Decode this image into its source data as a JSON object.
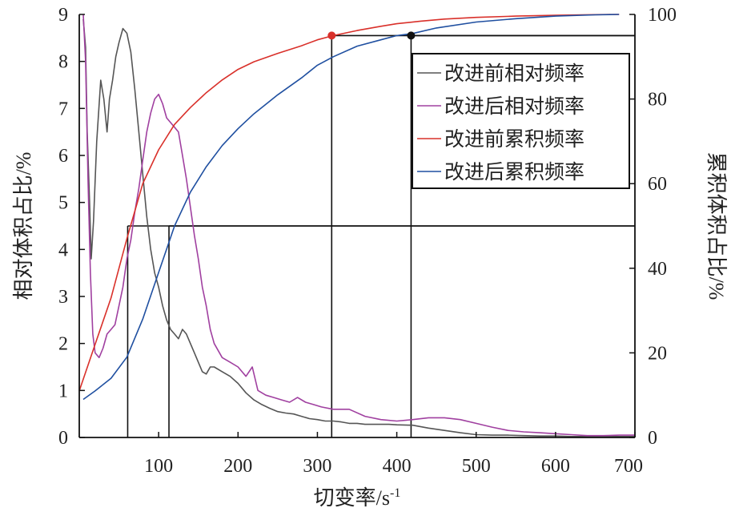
{
  "chart_data": {
    "type": "line",
    "xlabel": "切变率/s",
    "xlabel_sup": "-1",
    "ylabel_left": "相对体积占比/%",
    "ylabel_right": "累积体积占比/%",
    "xlim": [
      0,
      700
    ],
    "ylim_left": [
      0,
      9
    ],
    "ylim_right": [
      0,
      100
    ],
    "x_ticks": [
      100,
      200,
      300,
      400,
      500,
      600,
      700
    ],
    "y_left_ticks": [
      0,
      1,
      2,
      3,
      4,
      5,
      6,
      7,
      8,
      9
    ],
    "y_right_ticks": [
      0,
      20,
      40,
      60,
      80,
      100
    ],
    "legend_position": "top-right",
    "series": [
      {
        "name": "改进前相对频率",
        "axis": "left",
        "color": "#555555",
        "points": [
          [
            5,
            8.9
          ],
          [
            8,
            8.3
          ],
          [
            10,
            6.5
          ],
          [
            13,
            5.0
          ],
          [
            15,
            3.8
          ],
          [
            18,
            4.6
          ],
          [
            22,
            6.3
          ],
          [
            27,
            7.6
          ],
          [
            31,
            7.2
          ],
          [
            35,
            6.5
          ],
          [
            38,
            7.2
          ],
          [
            42,
            7.6
          ],
          [
            46,
            8.1
          ],
          [
            50,
            8.4
          ],
          [
            55,
            8.7
          ],
          [
            60,
            8.6
          ],
          [
            65,
            8.2
          ],
          [
            70,
            7.4
          ],
          [
            75,
            6.5
          ],
          [
            80,
            5.6
          ],
          [
            85,
            4.7
          ],
          [
            90,
            4.0
          ],
          [
            95,
            3.5
          ],
          [
            100,
            3.2
          ],
          [
            105,
            2.8
          ],
          [
            110,
            2.5
          ],
          [
            115,
            2.3
          ],
          [
            120,
            2.2
          ],
          [
            125,
            2.1
          ],
          [
            130,
            2.3
          ],
          [
            135,
            2.2
          ],
          [
            140,
            2.0
          ],
          [
            145,
            1.8
          ],
          [
            150,
            1.6
          ],
          [
            155,
            1.4
          ],
          [
            160,
            1.35
          ],
          [
            165,
            1.5
          ],
          [
            170,
            1.5
          ],
          [
            180,
            1.4
          ],
          [
            190,
            1.3
          ],
          [
            200,
            1.15
          ],
          [
            210,
            0.95
          ],
          [
            220,
            0.8
          ],
          [
            230,
            0.7
          ],
          [
            240,
            0.62
          ],
          [
            250,
            0.55
          ],
          [
            260,
            0.52
          ],
          [
            270,
            0.5
          ],
          [
            280,
            0.45
          ],
          [
            290,
            0.4
          ],
          [
            300,
            0.38
          ],
          [
            310,
            0.35
          ],
          [
            320,
            0.35
          ],
          [
            330,
            0.33
          ],
          [
            340,
            0.3
          ],
          [
            350,
            0.3
          ],
          [
            360,
            0.28
          ],
          [
            370,
            0.28
          ],
          [
            380,
            0.28
          ],
          [
            390,
            0.28
          ],
          [
            400,
            0.27
          ],
          [
            420,
            0.26
          ],
          [
            440,
            0.2
          ],
          [
            460,
            0.15
          ],
          [
            480,
            0.1
          ],
          [
            500,
            0.06
          ],
          [
            520,
            0.05
          ],
          [
            540,
            0.05
          ],
          [
            560,
            0.04
          ],
          [
            580,
            0.03
          ],
          [
            600,
            0.03
          ],
          [
            620,
            0.02
          ],
          [
            640,
            0.02
          ],
          [
            660,
            0.02
          ],
          [
            680,
            0.02
          ],
          [
            700,
            0.02
          ]
        ]
      },
      {
        "name": "改进后相对频率",
        "axis": "left",
        "color": "#a040a0",
        "points": [
          [
            5,
            9.0
          ],
          [
            8,
            8.0
          ],
          [
            11,
            5.5
          ],
          [
            14,
            3.5
          ],
          [
            17,
            2.2
          ],
          [
            20,
            1.8
          ],
          [
            25,
            1.7
          ],
          [
            30,
            1.9
          ],
          [
            35,
            2.2
          ],
          [
            40,
            2.3
          ],
          [
            45,
            2.4
          ],
          [
            50,
            2.8
          ],
          [
            55,
            3.2
          ],
          [
            60,
            3.8
          ],
          [
            65,
            4.2
          ],
          [
            70,
            4.8
          ],
          [
            75,
            5.3
          ],
          [
            80,
            5.9
          ],
          [
            85,
            6.5
          ],
          [
            90,
            6.9
          ],
          [
            95,
            7.2
          ],
          [
            100,
            7.3
          ],
          [
            105,
            7.1
          ],
          [
            110,
            6.8
          ],
          [
            115,
            6.7
          ],
          [
            120,
            6.6
          ],
          [
            125,
            6.5
          ],
          [
            130,
            6.0
          ],
          [
            135,
            5.5
          ],
          [
            140,
            4.9
          ],
          [
            145,
            4.3
          ],
          [
            150,
            3.8
          ],
          [
            155,
            3.2
          ],
          [
            160,
            2.8
          ],
          [
            165,
            2.3
          ],
          [
            170,
            2.0
          ],
          [
            180,
            1.7
          ],
          [
            190,
            1.6
          ],
          [
            200,
            1.5
          ],
          [
            210,
            1.3
          ],
          [
            218,
            1.5
          ],
          [
            225,
            1.0
          ],
          [
            235,
            0.9
          ],
          [
            245,
            0.85
          ],
          [
            255,
            0.8
          ],
          [
            265,
            0.75
          ],
          [
            275,
            0.85
          ],
          [
            285,
            0.75
          ],
          [
            295,
            0.7
          ],
          [
            305,
            0.65
          ],
          [
            320,
            0.6
          ],
          [
            340,
            0.6
          ],
          [
            360,
            0.45
          ],
          [
            380,
            0.38
          ],
          [
            400,
            0.35
          ],
          [
            420,
            0.38
          ],
          [
            440,
            0.42
          ],
          [
            460,
            0.42
          ],
          [
            480,
            0.38
          ],
          [
            500,
            0.3
          ],
          [
            520,
            0.22
          ],
          [
            540,
            0.15
          ],
          [
            560,
            0.12
          ],
          [
            580,
            0.1
          ],
          [
            600,
            0.08
          ],
          [
            620,
            0.06
          ],
          [
            640,
            0.04
          ],
          [
            660,
            0.04
          ],
          [
            680,
            0.05
          ],
          [
            700,
            0.05
          ]
        ]
      },
      {
        "name": "改进前累积频率",
        "axis": "right",
        "color": "#d9302a",
        "points": [
          [
            0,
            11
          ],
          [
            20,
            22
          ],
          [
            40,
            33
          ],
          [
            60,
            47
          ],
          [
            80,
            60
          ],
          [
            100,
            68
          ],
          [
            120,
            74
          ],
          [
            140,
            78
          ],
          [
            160,
            81.5
          ],
          [
            180,
            84.5
          ],
          [
            200,
            87
          ],
          [
            220,
            88.8
          ],
          [
            250,
            90.8
          ],
          [
            280,
            92.6
          ],
          [
            300,
            94
          ],
          [
            320,
            95
          ],
          [
            350,
            96.2
          ],
          [
            380,
            97.2
          ],
          [
            400,
            97.8
          ],
          [
            430,
            98.4
          ],
          [
            460,
            98.9
          ],
          [
            500,
            99.3
          ],
          [
            550,
            99.6
          ],
          [
            600,
            99.8
          ],
          [
            650,
            99.95
          ],
          [
            680,
            100
          ]
        ]
      },
      {
        "name": "改进后累积频率",
        "axis": "right",
        "color": "#1f4fa0",
        "points": [
          [
            5,
            9
          ],
          [
            20,
            11
          ],
          [
            40,
            14
          ],
          [
            60,
            19
          ],
          [
            80,
            28
          ],
          [
            100,
            39
          ],
          [
            120,
            50
          ],
          [
            140,
            58
          ],
          [
            160,
            64
          ],
          [
            180,
            69
          ],
          [
            200,
            73
          ],
          [
            220,
            76.5
          ],
          [
            250,
            81
          ],
          [
            280,
            85
          ],
          [
            300,
            88
          ],
          [
            320,
            90
          ],
          [
            350,
            92.5
          ],
          [
            380,
            94
          ],
          [
            400,
            95
          ],
          [
            420,
            95.5
          ],
          [
            450,
            96.8
          ],
          [
            500,
            98.2
          ],
          [
            550,
            99
          ],
          [
            600,
            99.6
          ],
          [
            650,
            99.9
          ],
          [
            680,
            100
          ]
        ]
      }
    ],
    "markers": [
      {
        "x": 318,
        "y": 95,
        "axis": "right",
        "color": "#d9302a"
      },
      {
        "x": 418,
        "y": 95,
        "axis": "right",
        "color": "#111111"
      }
    ],
    "reference_lines": [
      {
        "x": 61,
        "y": 50,
        "axis": "right"
      },
      {
        "x": 113,
        "y": 50,
        "axis": "right"
      },
      {
        "x": 318,
        "y": 95,
        "axis": "right"
      },
      {
        "x": 418,
        "y": 95,
        "axis": "right"
      }
    ]
  }
}
